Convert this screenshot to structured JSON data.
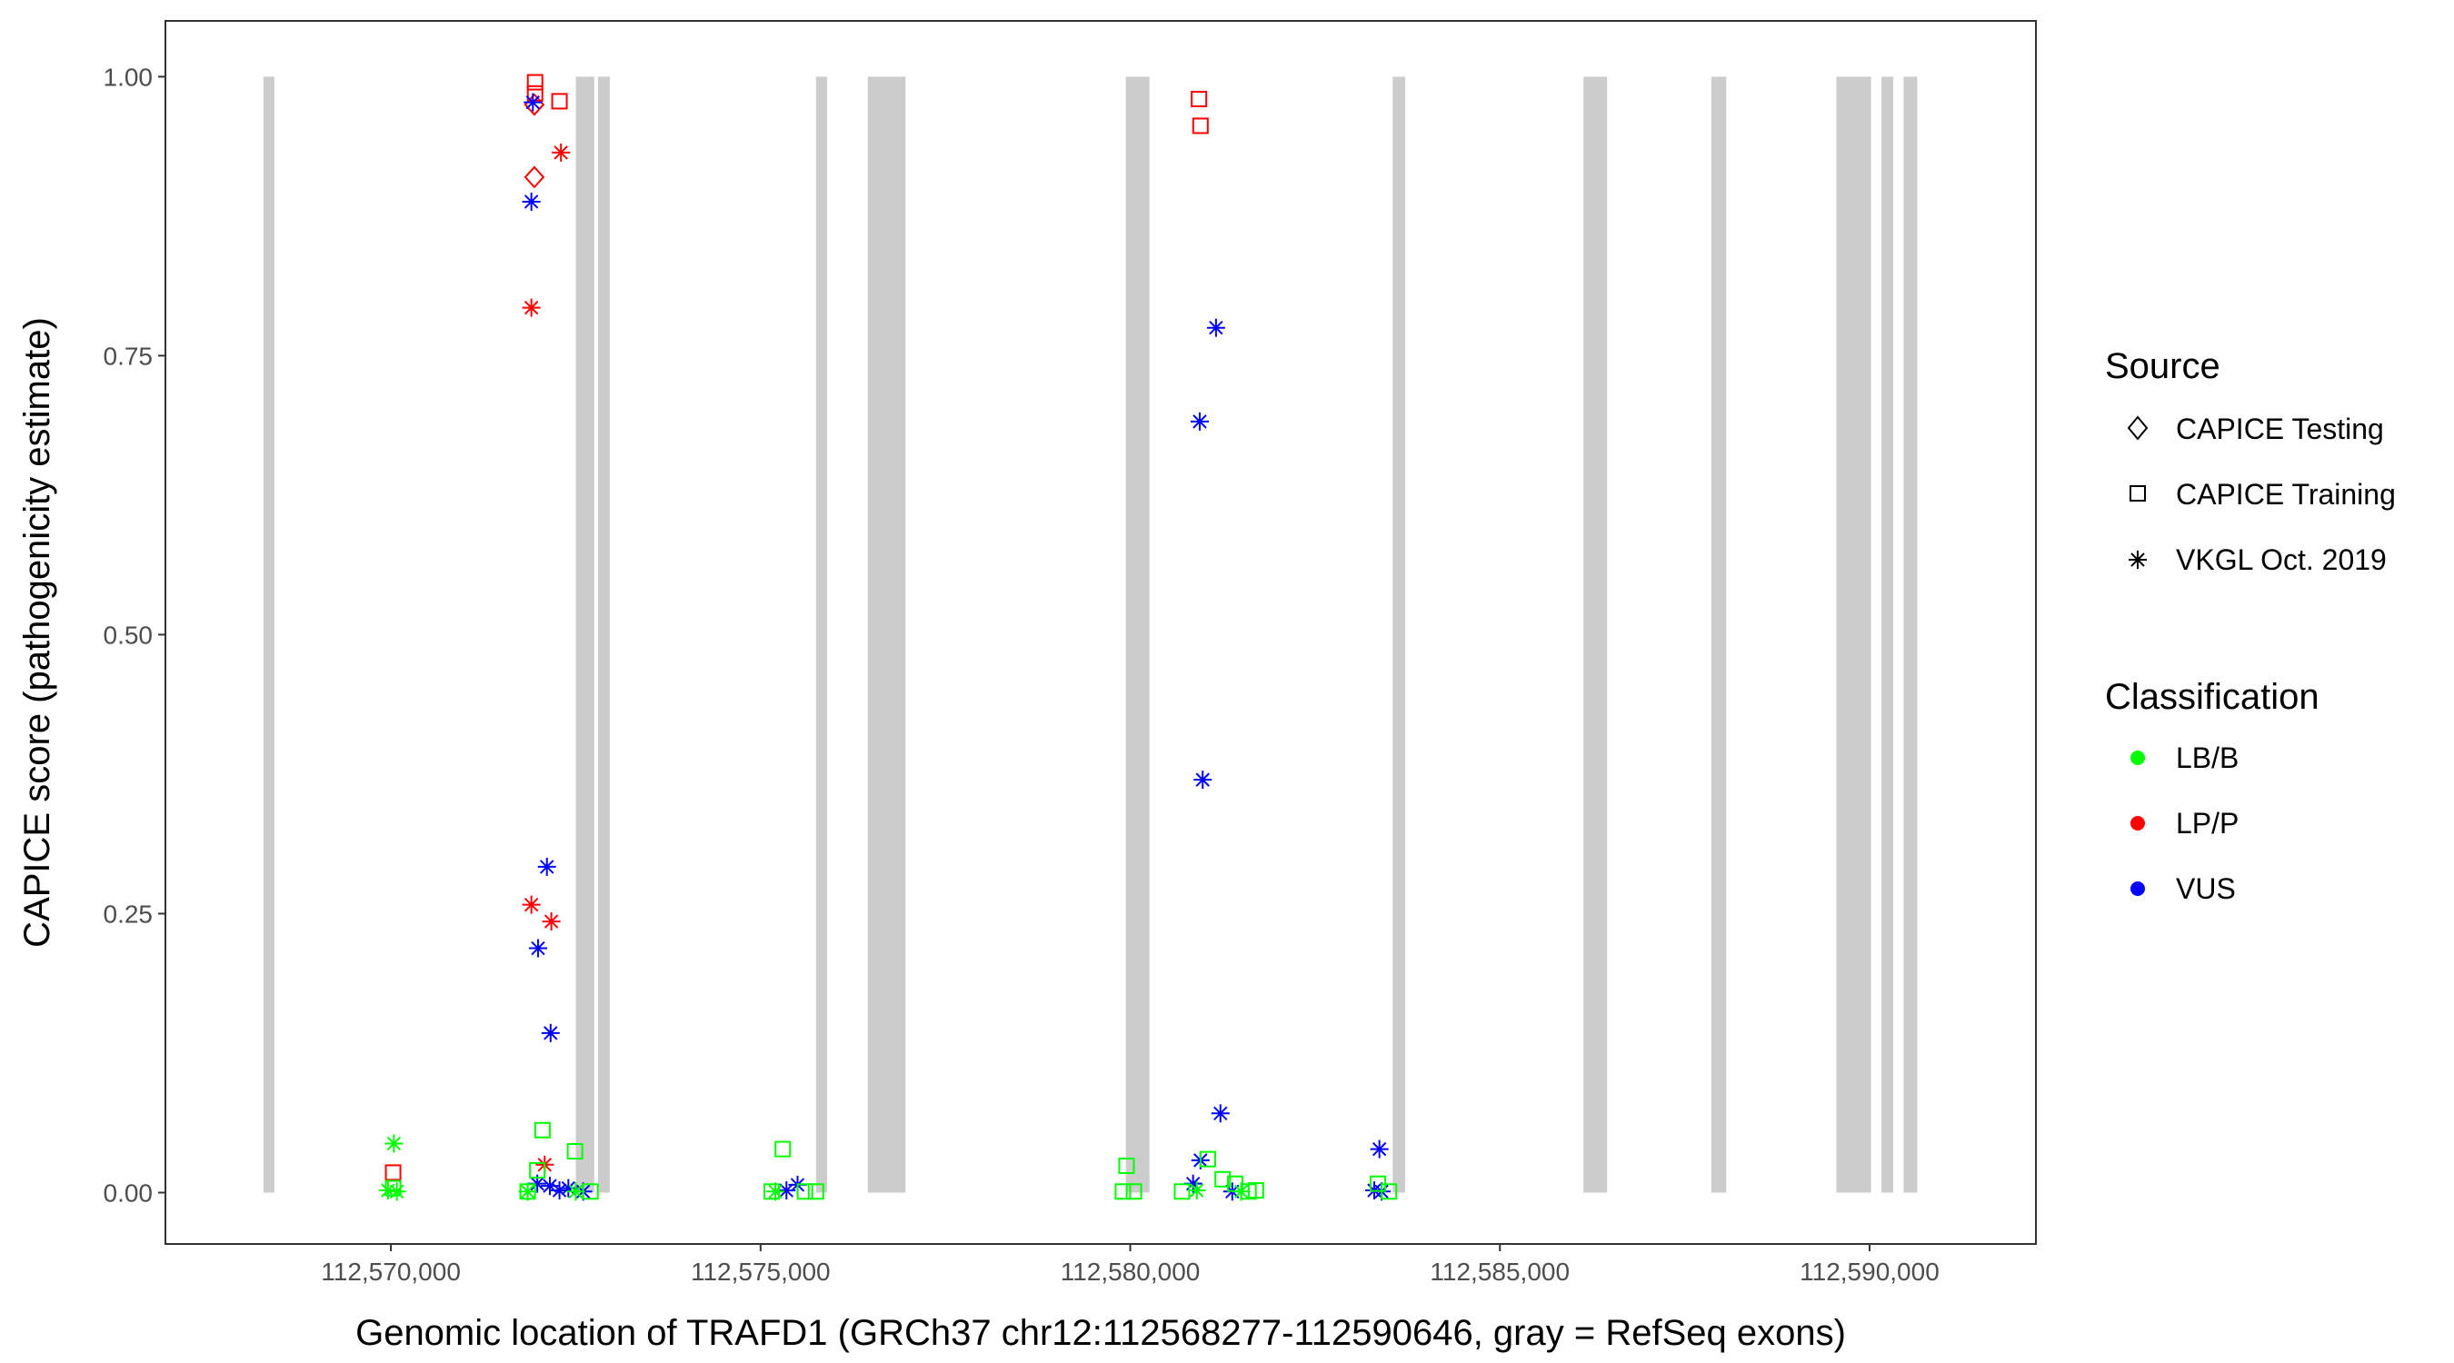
{
  "chart_data": {
    "type": "scatter",
    "title": "",
    "xlabel": "Genomic location of TRAFD1 (GRCh37 chr12:112568277-112590646, gray = RefSeq exons)",
    "ylabel": "CAPICE score (pathogenicity estimate)",
    "xlim": [
      112566950,
      112592250
    ],
    "ylim": [
      -0.046,
      1.05
    ],
    "x_ticks": [
      {
        "value": 112570000,
        "label": "112,570,000"
      },
      {
        "value": 112575000,
        "label": "112,575,000"
      },
      {
        "value": 112580000,
        "label": "112,580,000"
      },
      {
        "value": 112585000,
        "label": "112,585,000"
      },
      {
        "value": 112590000,
        "label": "112,590,000"
      }
    ],
    "y_ticks": [
      {
        "value": 0,
        "label": "0.00"
      },
      {
        "value": 0.25,
        "label": "0.25"
      },
      {
        "value": 0.5,
        "label": "0.50"
      },
      {
        "value": 0.75,
        "label": "0.75"
      },
      {
        "value": 1.0,
        "label": "1.00"
      }
    ],
    "grid": false,
    "exon_color": "#cccccc",
    "exons": [
      {
        "start": 112568277,
        "end": 112568420
      },
      {
        "start": 112572500,
        "end": 112572750
      },
      {
        "start": 112572800,
        "end": 112572960
      },
      {
        "start": 112575750,
        "end": 112575900
      },
      {
        "start": 112576450,
        "end": 112576960
      },
      {
        "start": 112579940,
        "end": 112580260
      },
      {
        "start": 112583550,
        "end": 112583720
      },
      {
        "start": 112586130,
        "end": 112586450
      },
      {
        "start": 112587860,
        "end": 112588060
      },
      {
        "start": 112589550,
        "end": 112590020
      },
      {
        "start": 112590160,
        "end": 112590320
      },
      {
        "start": 112590460,
        "end": 112590646
      }
    ],
    "legend": {
      "position": "right",
      "source_title": "Source",
      "source_items": [
        {
          "label": "CAPICE Testing",
          "shape": "diamond"
        },
        {
          "label": "CAPICE Training",
          "shape": "square"
        },
        {
          "label": "VKGL Oct. 2019",
          "shape": "asterisk"
        }
      ],
      "class_title": "Classification",
      "class_items": [
        {
          "label": "LB/B",
          "color": "#00ff00"
        },
        {
          "label": "LP/P",
          "color": "#ff0000"
        },
        {
          "label": "VUS",
          "color": "#0000ff"
        }
      ]
    },
    "series": [
      {
        "source": "CAPICE Testing",
        "classification": "LP/P",
        "shape": "diamond",
        "color": "#ff0000",
        "points": [
          {
            "x": 112571940,
            "y": 0.91
          },
          {
            "x": 112571940,
            "y": 0.975
          }
        ]
      },
      {
        "source": "CAPICE Training",
        "classification": "LP/P",
        "shape": "square",
        "color": "#ff0000",
        "points": [
          {
            "x": 112571950,
            "y": 0.995
          },
          {
            "x": 112571950,
            "y": 0.985
          },
          {
            "x": 112572280,
            "y": 0.978
          },
          {
            "x": 112580930,
            "y": 0.98
          },
          {
            "x": 112580950,
            "y": 0.956
          },
          {
            "x": 112570030,
            "y": 0.018
          }
        ]
      },
      {
        "source": "VKGL Oct. 2019",
        "classification": "LP/P",
        "shape": "asterisk",
        "color": "#ff0000",
        "points": [
          {
            "x": 112572300,
            "y": 0.932
          },
          {
            "x": 112571900,
            "y": 0.793
          },
          {
            "x": 112571900,
            "y": 0.258
          },
          {
            "x": 112572170,
            "y": 0.243
          },
          {
            "x": 112572080,
            "y": 0.025
          }
        ]
      },
      {
        "source": "VKGL Oct. 2019",
        "classification": "VUS",
        "shape": "asterisk",
        "color": "#0000ff",
        "points": [
          {
            "x": 112571920,
            "y": 0.977
          },
          {
            "x": 112571900,
            "y": 0.888
          },
          {
            "x": 112581160,
            "y": 0.775
          },
          {
            "x": 112580940,
            "y": 0.691
          },
          {
            "x": 112580980,
            "y": 0.37
          },
          {
            "x": 112572110,
            "y": 0.292
          },
          {
            "x": 112571990,
            "y": 0.219
          },
          {
            "x": 112572160,
            "y": 0.143
          },
          {
            "x": 112581220,
            "y": 0.071
          },
          {
            "x": 112583370,
            "y": 0.039
          },
          {
            "x": 112580950,
            "y": 0.029
          },
          {
            "x": 112580850,
            "y": 0.008
          },
          {
            "x": 112571980,
            "y": 0.008
          },
          {
            "x": 112572150,
            "y": 0.006
          },
          {
            "x": 112572400,
            "y": 0.004
          },
          {
            "x": 112572600,
            "y": 0.001
          },
          {
            "x": 112575500,
            "y": 0.007
          },
          {
            "x": 112575350,
            "y": 0.002
          },
          {
            "x": 112581380,
            "y": 0.001
          },
          {
            "x": 112583300,
            "y": 0.002
          },
          {
            "x": 112583400,
            "y": 0.001
          },
          {
            "x": 112572280,
            "y": 0.002
          }
        ]
      },
      {
        "source": "VKGL Oct. 2019",
        "classification": "LB/B",
        "shape": "asterisk",
        "color": "#00ff00",
        "points": [
          {
            "x": 112570040,
            "y": 0.044
          },
          {
            "x": 112569960,
            "y": 0.002
          },
          {
            "x": 112570080,
            "y": 0.001
          },
          {
            "x": 112571850,
            "y": 0.001
          },
          {
            "x": 112575200,
            "y": 0.001
          },
          {
            "x": 112580900,
            "y": 0.002
          },
          {
            "x": 112581500,
            "y": 0.001
          },
          {
            "x": 112572500,
            "y": 0.001
          }
        ]
      },
      {
        "source": "CAPICE Training",
        "classification": "LB/B",
        "shape": "square",
        "color": "#00ff00",
        "points": [
          {
            "x": 112572050,
            "y": 0.056
          },
          {
            "x": 112572490,
            "y": 0.037
          },
          {
            "x": 112575300,
            "y": 0.039
          },
          {
            "x": 112571980,
            "y": 0.02
          },
          {
            "x": 112571850,
            "y": 0.001
          },
          {
            "x": 112572700,
            "y": 0.001
          },
          {
            "x": 112575150,
            "y": 0.001
          },
          {
            "x": 112575600,
            "y": 0.001
          },
          {
            "x": 112575750,
            "y": 0.001
          },
          {
            "x": 112579950,
            "y": 0.024
          },
          {
            "x": 112579900,
            "y": 0.001
          },
          {
            "x": 112580050,
            "y": 0.001
          },
          {
            "x": 112581050,
            "y": 0.03
          },
          {
            "x": 112581250,
            "y": 0.012
          },
          {
            "x": 112581420,
            "y": 0.008
          },
          {
            "x": 112581600,
            "y": 0.001
          },
          {
            "x": 112581700,
            "y": 0.002
          },
          {
            "x": 112583350,
            "y": 0.008
          },
          {
            "x": 112583500,
            "y": 0.001
          },
          {
            "x": 112570030,
            "y": 0.004
          },
          {
            "x": 112580700,
            "y": 0.001
          }
        ]
      }
    ]
  }
}
